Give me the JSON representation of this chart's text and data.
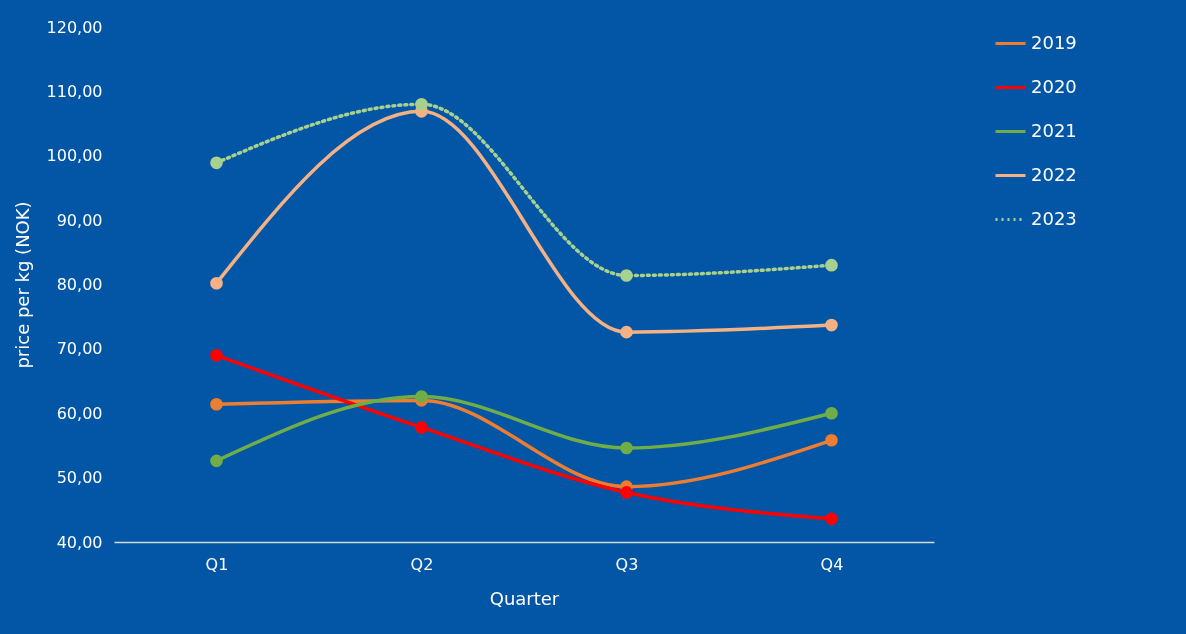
{
  "chart_data": {
    "type": "line",
    "xlabel": "Quarter",
    "ylabel": "price per kg (NOK)",
    "categories": [
      "Q1",
      "Q2",
      "Q3",
      "Q4"
    ],
    "series": [
      {
        "name": "2019",
        "color": "#ed7d31",
        "values": [
          61.4,
          62.0,
          48.6,
          55.8
        ]
      },
      {
        "name": "2020",
        "color": "#ff0000",
        "values": [
          69.0,
          57.8,
          47.7,
          43.6
        ]
      },
      {
        "name": "2021",
        "color": "#70ad47",
        "values": [
          52.6,
          62.6,
          54.6,
          60.0
        ]
      },
      {
        "name": "2022",
        "color": "#f4b183",
        "values": [
          80.2,
          106.9,
          72.6,
          73.7
        ]
      },
      {
        "name": "2023",
        "color": "#a9d18e",
        "line_style": "dotted",
        "values": [
          98.9,
          108.0,
          81.4,
          83.0
        ]
      }
    ],
    "ylim": [
      40,
      120
    ],
    "yticks": [
      {
        "value": 40,
        "label": "40,00"
      },
      {
        "value": 50,
        "label": "50,00"
      },
      {
        "value": 60,
        "label": "60,00"
      },
      {
        "value": 70,
        "label": "70,00"
      },
      {
        "value": 80,
        "label": "80,00"
      },
      {
        "value": 90,
        "label": "90,00"
      },
      {
        "value": 100,
        "label": "100,00"
      },
      {
        "value": 110,
        "label": "110,00"
      },
      {
        "value": 120,
        "label": "120,00"
      }
    ],
    "grid": false,
    "legend": "right",
    "marker": "circle",
    "line_style": "solid"
  }
}
